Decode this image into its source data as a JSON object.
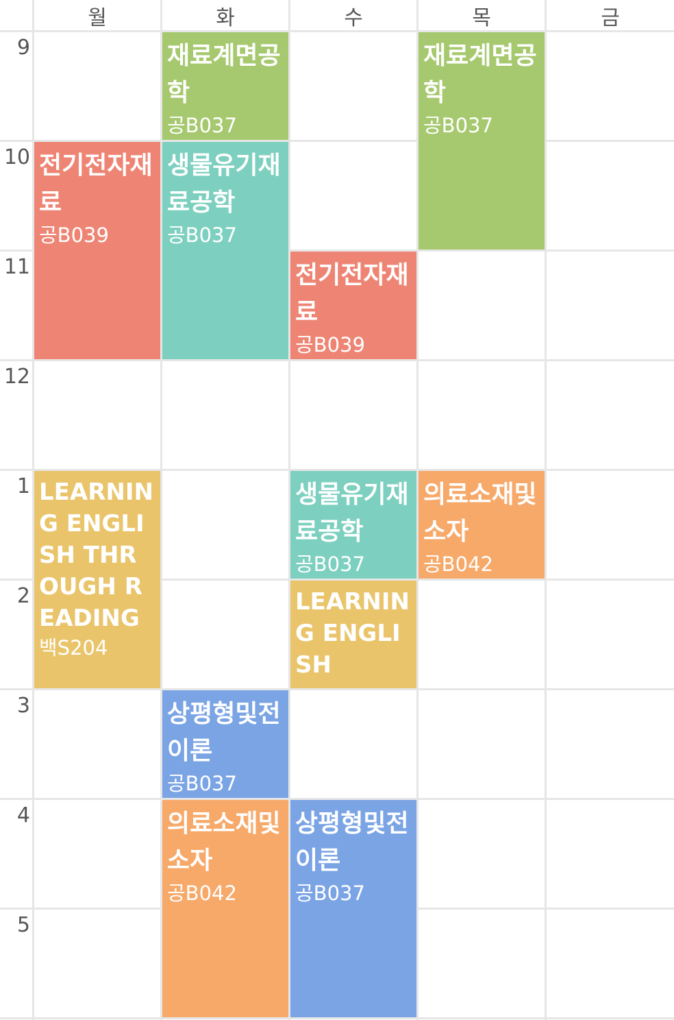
{
  "days": [
    "월",
    "화",
    "수",
    "목",
    "금"
  ],
  "hours": [
    "9",
    "10",
    "11",
    "12",
    "1",
    "2",
    "3",
    "4",
    "5"
  ],
  "colors": {
    "green": "#a6c96f",
    "red": "#ee8574",
    "teal": "#7dd0bf",
    "yellow": "#e9c46a",
    "orange": "#f7a96a",
    "blue": "#7ba4e5",
    "grid": "#e6e6e6",
    "label": "#555555"
  },
  "courses": [
    {
      "title": "재료계면공학",
      "room": "공B037"
    },
    {
      "title": "재료계면공학",
      "room": "공B037"
    },
    {
      "title": "전기전자재료",
      "room": "공B039"
    },
    {
      "title": "생물유기재료공학",
      "room": "공B037"
    },
    {
      "title": "전기전자재료",
      "room": "공B039"
    },
    {
      "title": "LEARNING ENGLISH THROUGH READING",
      "room": "백S204"
    },
    {
      "title": "생물유기재료공학",
      "room": "공B037"
    },
    {
      "title": "의료소재및소자",
      "room": "공B042"
    },
    {
      "title": "LEARNING ENGLISH",
      "room": ""
    },
    {
      "title": "상평형및전이론",
      "room": "공B037"
    },
    {
      "title": "의료소재및소자",
      "room": "공B042"
    },
    {
      "title": "상평형및전이론",
      "room": "공B037"
    }
  ]
}
